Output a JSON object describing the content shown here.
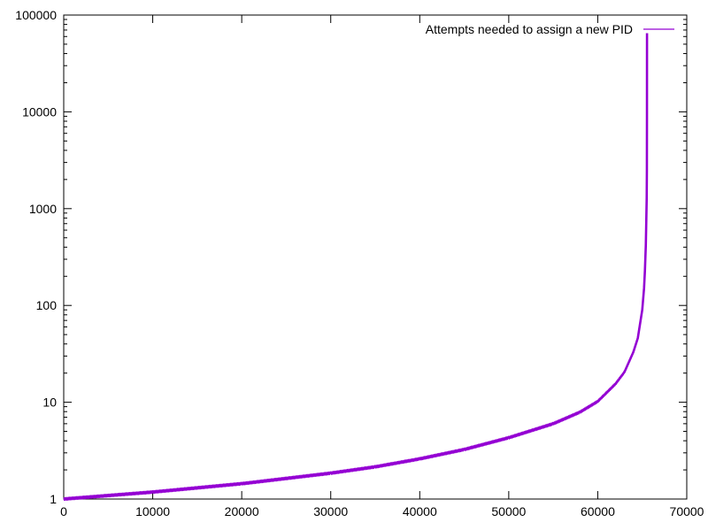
{
  "chart_data": {
    "type": "line",
    "title": "",
    "xlabel": "",
    "ylabel": "",
    "xlim": [
      0,
      70000
    ],
    "ylim": [
      1,
      100000
    ],
    "yscale": "log",
    "grid": false,
    "legend_position": "top-right",
    "x_ticks": [
      {
        "value": 0,
        "label": "0"
      },
      {
        "value": 10000,
        "label": "10000"
      },
      {
        "value": 20000,
        "label": "20000"
      },
      {
        "value": 30000,
        "label": "30000"
      },
      {
        "value": 40000,
        "label": "40000"
      },
      {
        "value": 50000,
        "label": "50000"
      },
      {
        "value": 60000,
        "label": "60000"
      },
      {
        "value": 70000,
        "label": "70000"
      }
    ],
    "y_ticks": [
      {
        "value": 1,
        "label": "1"
      },
      {
        "value": 10,
        "label": "10"
      },
      {
        "value": 100,
        "label": "100"
      },
      {
        "value": 1000,
        "label": "1000"
      },
      {
        "value": 10000,
        "label": "10000"
      },
      {
        "value": 100000,
        "label": "100000"
      }
    ],
    "series": [
      {
        "name": "Attempts needed to assign a new PID",
        "color": "#9400d3",
        "x": [
          0,
          10000,
          20000,
          30000,
          35000,
          40000,
          45000,
          50000,
          55000,
          58000,
          60000,
          62000,
          63000,
          64000,
          64500,
          65000,
          65200,
          65300,
          65400,
          65450,
          65500,
          65520,
          65530,
          65535
        ],
        "y": [
          1,
          1.18,
          1.44,
          1.85,
          2.15,
          2.6,
          3.25,
          4.3,
          6.0,
          7.9,
          10.2,
          15.5,
          20.5,
          33,
          46,
          90,
          150,
          230,
          420,
          720,
          1300,
          2500,
          10000,
          65000
        ]
      }
    ]
  }
}
